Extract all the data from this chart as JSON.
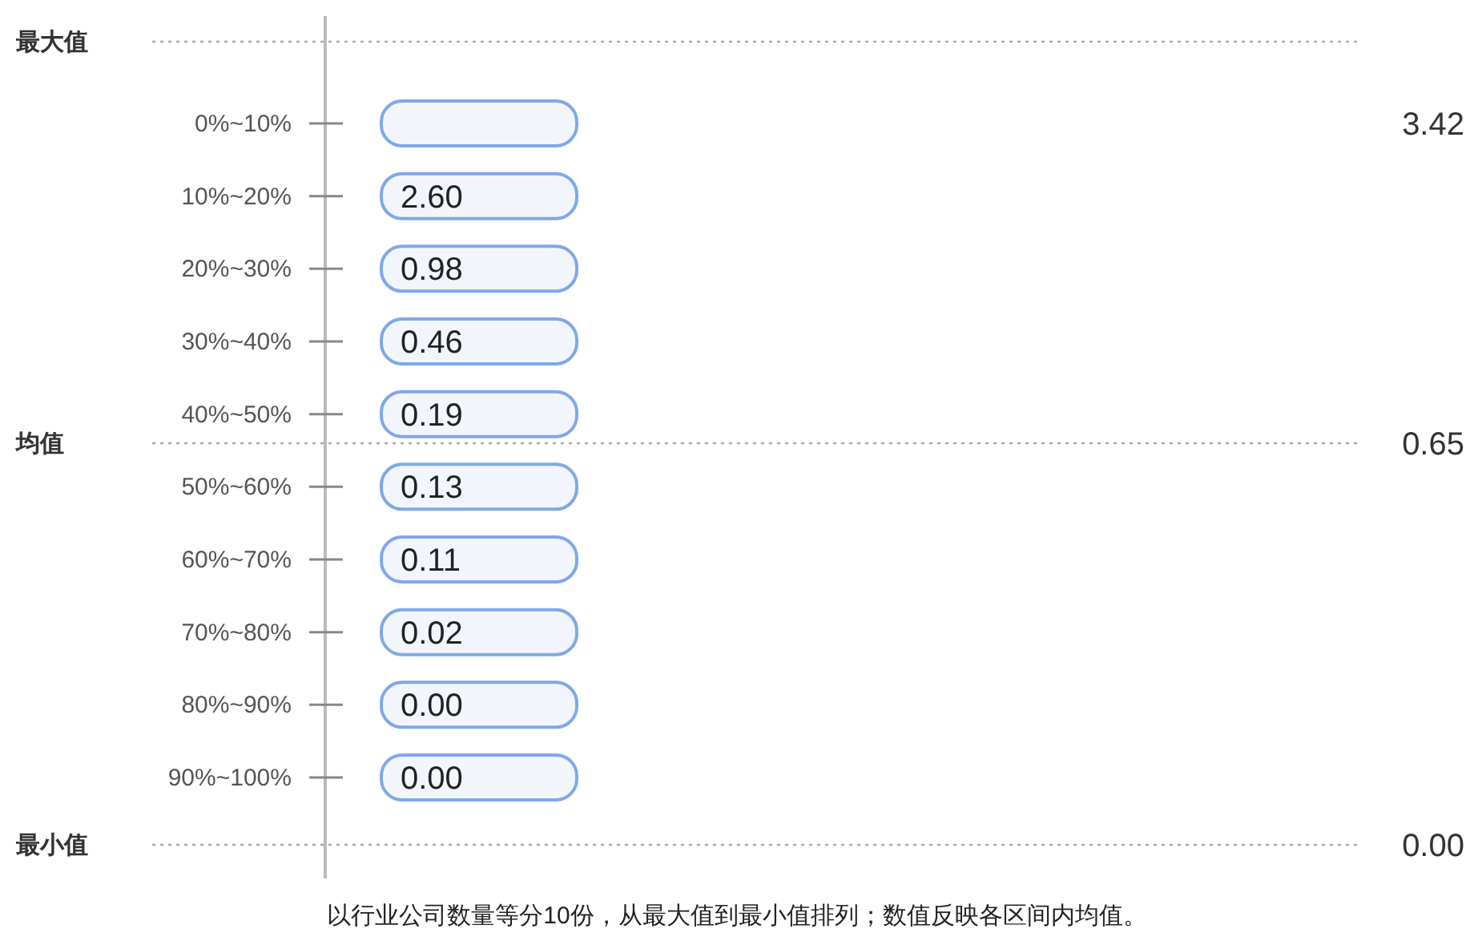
{
  "chart_data": {
    "type": "other",
    "categories": [
      "0%~10%",
      "10%~20%",
      "20%~30%",
      "30%~40%",
      "40%~50%",
      "50%~60%",
      "60%~70%",
      "70%~80%",
      "80%~90%",
      "90%~100%"
    ],
    "values": [
      null,
      2.6,
      0.98,
      0.46,
      0.19,
      0.13,
      0.11,
      0.02,
      0.0,
      0.0
    ],
    "value_labels": [
      null,
      "2.60",
      "0.98",
      "0.46",
      "0.19",
      "0.13",
      "0.11",
      "0.02",
      "0.00",
      "0.00"
    ],
    "annotations": [
      "最大值",
      "3.42",
      "均值",
      "0.65",
      "最小值",
      "0.00",
      "以行业公司数量等分10份，从最大值到最小值排列；数值反映各区间内均值。"
    ]
  }
}
